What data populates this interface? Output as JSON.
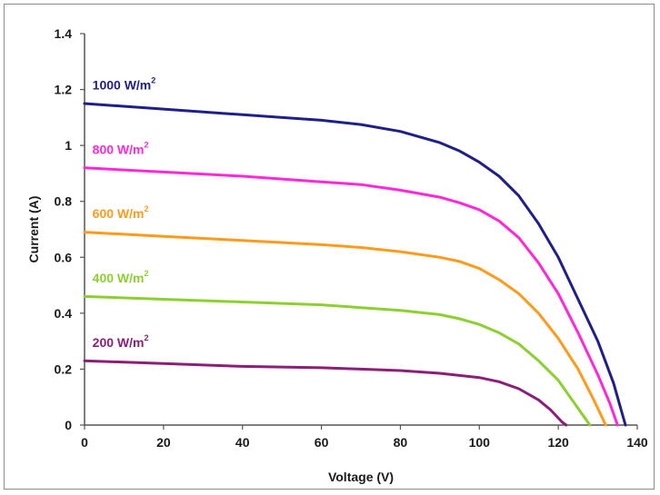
{
  "chart_data": {
    "type": "line",
    "title": "",
    "xlabel": "Voltage (V)",
    "ylabel": "Current (A)",
    "xlim": [
      0,
      140
    ],
    "ylim": [
      0,
      1.4
    ],
    "x_ticks": [
      "0",
      "20",
      "40",
      "60",
      "80",
      "100",
      "120",
      "140"
    ],
    "y_ticks": [
      "0",
      "0.2",
      "0.4",
      "0.6",
      "0.8",
      "1",
      "1.2",
      "1.4"
    ],
    "x_tick_values": [
      0,
      20,
      40,
      60,
      80,
      100,
      120,
      140
    ],
    "y_tick_values": [
      0,
      0.2,
      0.4,
      0.6,
      0.8,
      1.0,
      1.2,
      1.4
    ],
    "grid": false,
    "legend": "inline labels above each curve",
    "series": [
      {
        "name": "1000 W/m",
        "label_sup": "2",
        "color": "#1f1f8c",
        "label_at": [
          2,
          1.2
        ],
        "points": [
          [
            0,
            1.15
          ],
          [
            20,
            1.13
          ],
          [
            40,
            1.11
          ],
          [
            60,
            1.09
          ],
          [
            70,
            1.075
          ],
          [
            80,
            1.05
          ],
          [
            90,
            1.01
          ],
          [
            95,
            0.98
          ],
          [
            100,
            0.94
          ],
          [
            105,
            0.89
          ],
          [
            110,
            0.82
          ],
          [
            115,
            0.72
          ],
          [
            120,
            0.6
          ],
          [
            125,
            0.45
          ],
          [
            130,
            0.3
          ],
          [
            134,
            0.15
          ],
          [
            137,
            0
          ]
        ]
      },
      {
        "name": "800 W/m",
        "label_sup": "2",
        "color": "#ff28d8",
        "label_at": [
          2,
          0.97
        ],
        "points": [
          [
            0,
            0.92
          ],
          [
            20,
            0.905
          ],
          [
            40,
            0.89
          ],
          [
            60,
            0.87
          ],
          [
            70,
            0.86
          ],
          [
            80,
            0.84
          ],
          [
            90,
            0.815
          ],
          [
            95,
            0.795
          ],
          [
            100,
            0.77
          ],
          [
            105,
            0.73
          ],
          [
            110,
            0.67
          ],
          [
            115,
            0.58
          ],
          [
            120,
            0.47
          ],
          [
            125,
            0.33
          ],
          [
            130,
            0.18
          ],
          [
            133,
            0.08
          ],
          [
            135,
            0
          ]
        ]
      },
      {
        "name": "600 W/m",
        "label_sup": "2",
        "color": "#ff9a1a",
        "label_at": [
          2,
          0.74
        ],
        "points": [
          [
            0,
            0.69
          ],
          [
            20,
            0.675
          ],
          [
            40,
            0.66
          ],
          [
            60,
            0.645
          ],
          [
            70,
            0.635
          ],
          [
            80,
            0.62
          ],
          [
            90,
            0.6
          ],
          [
            95,
            0.585
          ],
          [
            100,
            0.56
          ],
          [
            105,
            0.52
          ],
          [
            110,
            0.47
          ],
          [
            115,
            0.4
          ],
          [
            120,
            0.31
          ],
          [
            125,
            0.2
          ],
          [
            129,
            0.09
          ],
          [
            132,
            0
          ]
        ]
      },
      {
        "name": "400 W/m",
        "label_sup": "2",
        "color": "#8cd030",
        "label_at": [
          2,
          0.51
        ],
        "points": [
          [
            0,
            0.46
          ],
          [
            20,
            0.45
          ],
          [
            40,
            0.44
          ],
          [
            60,
            0.43
          ],
          [
            70,
            0.42
          ],
          [
            80,
            0.41
          ],
          [
            90,
            0.395
          ],
          [
            95,
            0.38
          ],
          [
            100,
            0.36
          ],
          [
            105,
            0.33
          ],
          [
            110,
            0.29
          ],
          [
            115,
            0.23
          ],
          [
            120,
            0.16
          ],
          [
            124,
            0.08
          ],
          [
            128,
            0
          ]
        ]
      },
      {
        "name": "200 W/m",
        "label_sup": "2",
        "color": "#8c1e78",
        "label_at": [
          2,
          0.28
        ],
        "points": [
          [
            0,
            0.23
          ],
          [
            20,
            0.22
          ],
          [
            40,
            0.21
          ],
          [
            60,
            0.205
          ],
          [
            70,
            0.2
          ],
          [
            80,
            0.195
          ],
          [
            90,
            0.185
          ],
          [
            100,
            0.17
          ],
          [
            105,
            0.155
          ],
          [
            110,
            0.13
          ],
          [
            115,
            0.09
          ],
          [
            118,
            0.055
          ],
          [
            121,
            0.01
          ],
          [
            122,
            0
          ]
        ]
      }
    ]
  }
}
